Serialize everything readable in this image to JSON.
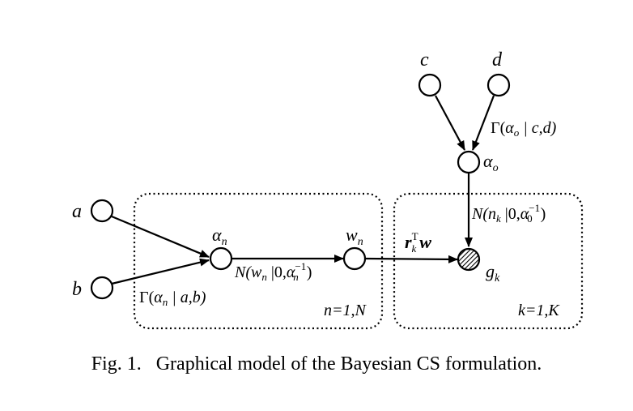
{
  "figure": {
    "caption": "Fig. 1.   Graphical model of the Bayesian CS formulation."
  },
  "nodes": {
    "a": "a",
    "b": "b",
    "c": "c",
    "d": "d",
    "alpha_n": {
      "symbol": "α",
      "sub": "n"
    },
    "w_n": {
      "symbol": "w",
      "sub": "n"
    },
    "alpha_o": {
      "symbol": "α",
      "sub": "o"
    },
    "g_k": {
      "symbol": "g",
      "sub": "k"
    }
  },
  "edges": {
    "gamma_n": {
      "prefix": "Γ(",
      "var": "α",
      "var_sub": "n",
      "rest": " | a,b)"
    },
    "gaussian_w": {
      "prefix": "N(",
      "var": "w",
      "var_sub": "n",
      "mid": " |0,",
      "prec": "α",
      "prec_sub": "n",
      "prec_sup": "−1",
      "suffix": ")"
    },
    "gamma_o": {
      "prefix": "Γ(",
      "var": "α",
      "var_sub": "o",
      "rest": " | c,d)"
    },
    "gaussian_n": {
      "prefix": "N(",
      "var": "n",
      "var_sub": "k",
      "mid": " |0,",
      "prec": "α",
      "prec_sub": "0",
      "prec_sup": "−1",
      "suffix": ")"
    },
    "projection": {
      "r": "r",
      "r_sub": "k",
      "r_sup": "T",
      "w": "w"
    }
  },
  "plates": {
    "n_plate": "n=1,N",
    "k_plate": "k=1,K"
  }
}
